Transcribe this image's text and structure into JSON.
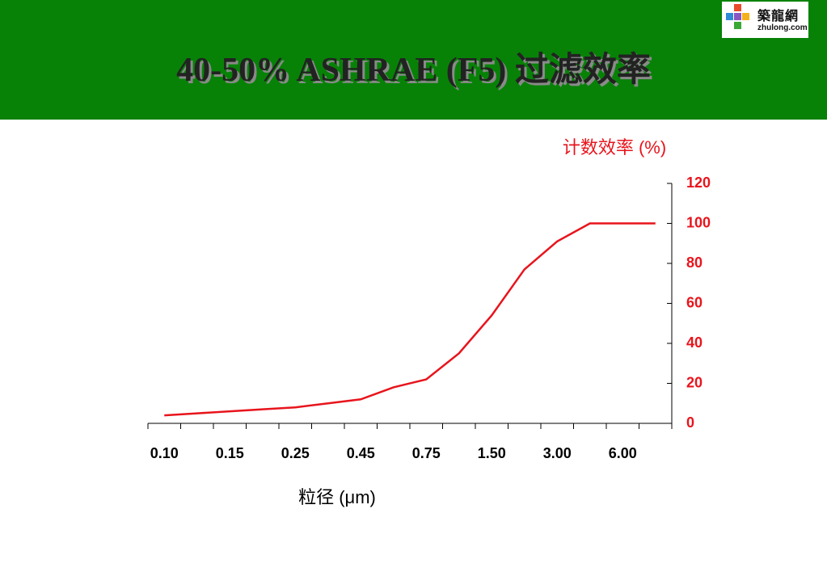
{
  "header": {
    "title": "40-50% ASHRAE (F5) 过滤效率",
    "logo_name": "築龍網",
    "logo_url": "zhulong.com"
  },
  "chart_data": {
    "type": "line",
    "y_axis_label": "计数效率 (%)",
    "x_axis_label": "粒径 (μm)",
    "categories": [
      "0.10",
      null,
      "0.15",
      null,
      "0.25",
      null,
      "0.45",
      null,
      "0.75",
      null,
      "1.50",
      null,
      "3.00",
      null,
      "6.00",
      null
    ],
    "series": [
      {
        "color": "#e8141c",
        "values": [
          4,
          5,
          6,
          7,
          8,
          10,
          12,
          18,
          22,
          35,
          54,
          77,
          91,
          100,
          100,
          100
        ]
      }
    ],
    "ylim": [
      0,
      120
    ],
    "yticks": [
      0,
      20,
      40,
      60,
      80,
      100,
      120
    ],
    "y_axis_position": "right",
    "label_color": "#e8141c"
  }
}
